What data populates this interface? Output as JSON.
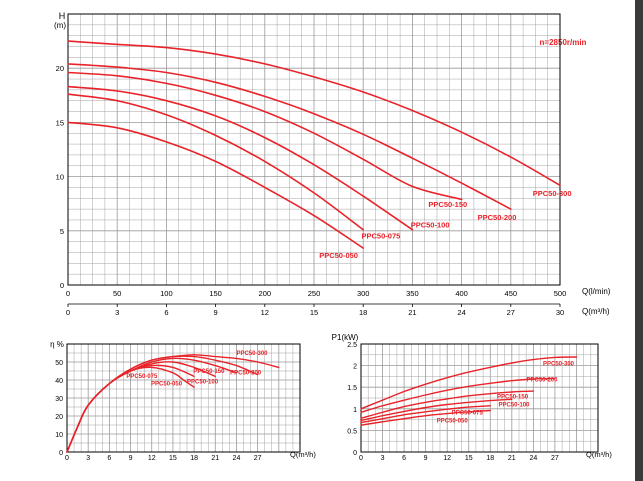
{
  "chart_data": [
    {
      "type": "line",
      "id": "head",
      "y_axis_label": "H",
      "y_axis_unit": "(m)",
      "x_axis_label": "Q(l/min)",
      "x2_axis_label": "Q(m³/h)",
      "annotation": "n=2850r/min",
      "xlim": [
        0,
        500
      ],
      "ylim": [
        0,
        25
      ],
      "x_ticks": [
        "0",
        "50",
        "100",
        "150",
        "200",
        "250",
        "300",
        "350",
        "400",
        "450",
        "500"
      ],
      "x2_ticks": [
        "0",
        "3",
        "6",
        "9",
        "12",
        "15",
        "18",
        "21",
        "24",
        "27",
        "30"
      ],
      "y_ticks": [
        "0",
        "5",
        "10",
        "15",
        "20"
      ],
      "grid": true,
      "series": [
        {
          "name": "PPC50-050",
          "x": [
            0,
            50,
            100,
            150,
            200,
            250,
            300
          ],
          "y": [
            15,
            14.5,
            13.2,
            11.4,
            9.0,
            6.4,
            3.4
          ],
          "label_at": [
            275,
            2.5
          ]
        },
        {
          "name": "PPC50-075",
          "x": [
            0,
            50,
            100,
            150,
            200,
            250,
            300
          ],
          "y": [
            17.6,
            17.0,
            15.7,
            13.8,
            11.4,
            8.5,
            5.1
          ],
          "label_at": [
            318,
            4.3
          ]
        },
        {
          "name": "PPC50-100",
          "x": [
            0,
            50,
            100,
            150,
            200,
            250,
            300,
            350
          ],
          "y": [
            18.3,
            17.9,
            17.0,
            15.6,
            13.6,
            11.1,
            8.2,
            5.1
          ],
          "label_at": [
            368,
            5.3
          ]
        },
        {
          "name": "PPC50-150",
          "x": [
            0,
            50,
            100,
            150,
            200,
            250,
            300,
            350,
            400
          ],
          "y": [
            19.6,
            19.3,
            18.6,
            17.5,
            16.0,
            14.0,
            11.6,
            9.1,
            7.9
          ],
          "label_at": [
            386,
            7.2
          ]
        },
        {
          "name": "PPC50-200",
          "x": [
            0,
            50,
            100,
            150,
            200,
            250,
            300,
            350,
            400,
            450
          ],
          "y": [
            20.4,
            20.1,
            19.6,
            18.7,
            17.4,
            15.8,
            13.9,
            11.7,
            9.4,
            7.0
          ],
          "label_at": [
            436,
            6.0
          ]
        },
        {
          "name": "PPC50-300",
          "x": [
            0,
            50,
            100,
            150,
            200,
            250,
            300,
            350,
            400,
            450,
            500
          ],
          "y": [
            22.5,
            22.2,
            21.9,
            21.3,
            20.4,
            19.2,
            17.8,
            16.1,
            14.1,
            11.8,
            9.2
          ],
          "label_at": [
            492,
            8.2
          ]
        }
      ]
    },
    {
      "type": "line",
      "id": "efficiency",
      "y_axis_label": "η %",
      "x_axis_label": "Q(m³/h)",
      "xlim": [
        0,
        33
      ],
      "ylim": [
        0,
        60
      ],
      "x_ticks": [
        "0",
        "3",
        "6",
        "9",
        "12",
        "15",
        "18",
        "21",
        "24",
        "27"
      ],
      "y_ticks": [
        "0",
        "10",
        "20",
        "30",
        "40",
        "50"
      ],
      "grid": true,
      "series": [
        {
          "name": "PPC50-050",
          "x": [
            0,
            1.5,
            3,
            6,
            9,
            12,
            15,
            16.5,
            18
          ],
          "y": [
            0,
            14,
            26,
            38,
            45,
            47,
            44,
            40,
            36
          ],
          "label_at": [
            14.1,
            37
          ]
        },
        {
          "name": "PPC50-075",
          "x": [
            0,
            1.5,
            3,
            6,
            9,
            12,
            15,
            18
          ],
          "y": [
            0,
            14,
            26,
            38,
            45,
            48,
            47,
            42
          ],
          "label_at": [
            10.6,
            41
          ]
        },
        {
          "name": "PPC50-100",
          "x": [
            0,
            1.5,
            3,
            6,
            9,
            12,
            15,
            18,
            21
          ],
          "y": [
            0,
            14,
            26,
            38,
            45,
            49,
            50,
            47,
            42
          ],
          "label_at": [
            19.2,
            38
          ]
        },
        {
          "name": "PPC50-150",
          "x": [
            0,
            1.5,
            3,
            6,
            9,
            12,
            15,
            18,
            21,
            24
          ],
          "y": [
            0,
            14,
            26,
            38,
            45,
            50,
            52,
            51,
            48,
            44
          ],
          "label_at": [
            20.1,
            44
          ]
        },
        {
          "name": "PPC50-200",
          "x": [
            0,
            1.5,
            3,
            6,
            9,
            12,
            15,
            18,
            21,
            24,
            27
          ],
          "y": [
            0,
            14,
            26,
            38,
            46,
            51,
            53,
            53,
            51,
            48,
            43
          ],
          "label_at": [
            25.3,
            43
          ]
        },
        {
          "name": "PPC50-300",
          "x": [
            0,
            1.5,
            3,
            6,
            9,
            12,
            15,
            18,
            21,
            24,
            27,
            30
          ],
          "y": [
            0,
            14,
            26,
            38,
            46,
            51,
            53,
            54,
            53,
            52,
            50,
            47
          ],
          "label_at": [
            26.2,
            54
          ]
        }
      ]
    },
    {
      "type": "line",
      "id": "power",
      "y_axis_label": "P1(kW)",
      "x_axis_label": "Q(m³/h)",
      "xlim": [
        0,
        33
      ],
      "ylim": [
        0,
        2.5
      ],
      "x_ticks": [
        "0",
        "3",
        "6",
        "9",
        "12",
        "15",
        "18",
        "21",
        "24",
        "27"
      ],
      "y_ticks": [
        "0",
        "0.5",
        "1",
        "1.5",
        "2",
        "2.5"
      ],
      "grid": true,
      "series": [
        {
          "name": "PPC50-050",
          "x": [
            0,
            3,
            6,
            9,
            12,
            15,
            18
          ],
          "y": [
            0.62,
            0.7,
            0.77,
            0.84,
            0.89,
            0.93,
            0.96
          ],
          "label_at": [
            12.7,
            0.68
          ]
        },
        {
          "name": "PPC50-075",
          "x": [
            0,
            3,
            6,
            9,
            12,
            15,
            18
          ],
          "y": [
            0.68,
            0.77,
            0.86,
            0.93,
            0.99,
            1.04,
            1.07
          ],
          "label_at": [
            14.8,
            0.87
          ]
        },
        {
          "name": "PPC50-100",
          "x": [
            0,
            3,
            6,
            9,
            12,
            15,
            18,
            21
          ],
          "y": [
            0.73,
            0.84,
            0.94,
            1.03,
            1.1,
            1.15,
            1.19,
            1.22
          ],
          "label_at": [
            21.3,
            1.05
          ]
        },
        {
          "name": "PPC50-150",
          "x": [
            0,
            3,
            6,
            9,
            12,
            15,
            18,
            21,
            24
          ],
          "y": [
            0.78,
            0.92,
            1.05,
            1.15,
            1.23,
            1.3,
            1.35,
            1.39,
            1.41
          ],
          "label_at": [
            21.1,
            1.24
          ]
        },
        {
          "name": "PPC50-200",
          "x": [
            0,
            3,
            6,
            9,
            12,
            15,
            18,
            21,
            24,
            27
          ],
          "y": [
            0.92,
            1.07,
            1.2,
            1.32,
            1.43,
            1.52,
            1.59,
            1.65,
            1.69,
            1.7
          ],
          "label_at": [
            25.2,
            1.63
          ]
        },
        {
          "name": "PPC50-300",
          "x": [
            0,
            3,
            6,
            9,
            12,
            15,
            18,
            21,
            24,
            27,
            30
          ],
          "y": [
            1.0,
            1.2,
            1.4,
            1.57,
            1.72,
            1.85,
            1.96,
            2.06,
            2.14,
            2.19,
            2.2
          ],
          "label_at": [
            27.5,
            2.0
          ]
        }
      ]
    }
  ],
  "colors": {
    "curve": "#e8232a",
    "axis": "#000000",
    "grid": "#9a9a9a",
    "label": "#e8232a"
  }
}
